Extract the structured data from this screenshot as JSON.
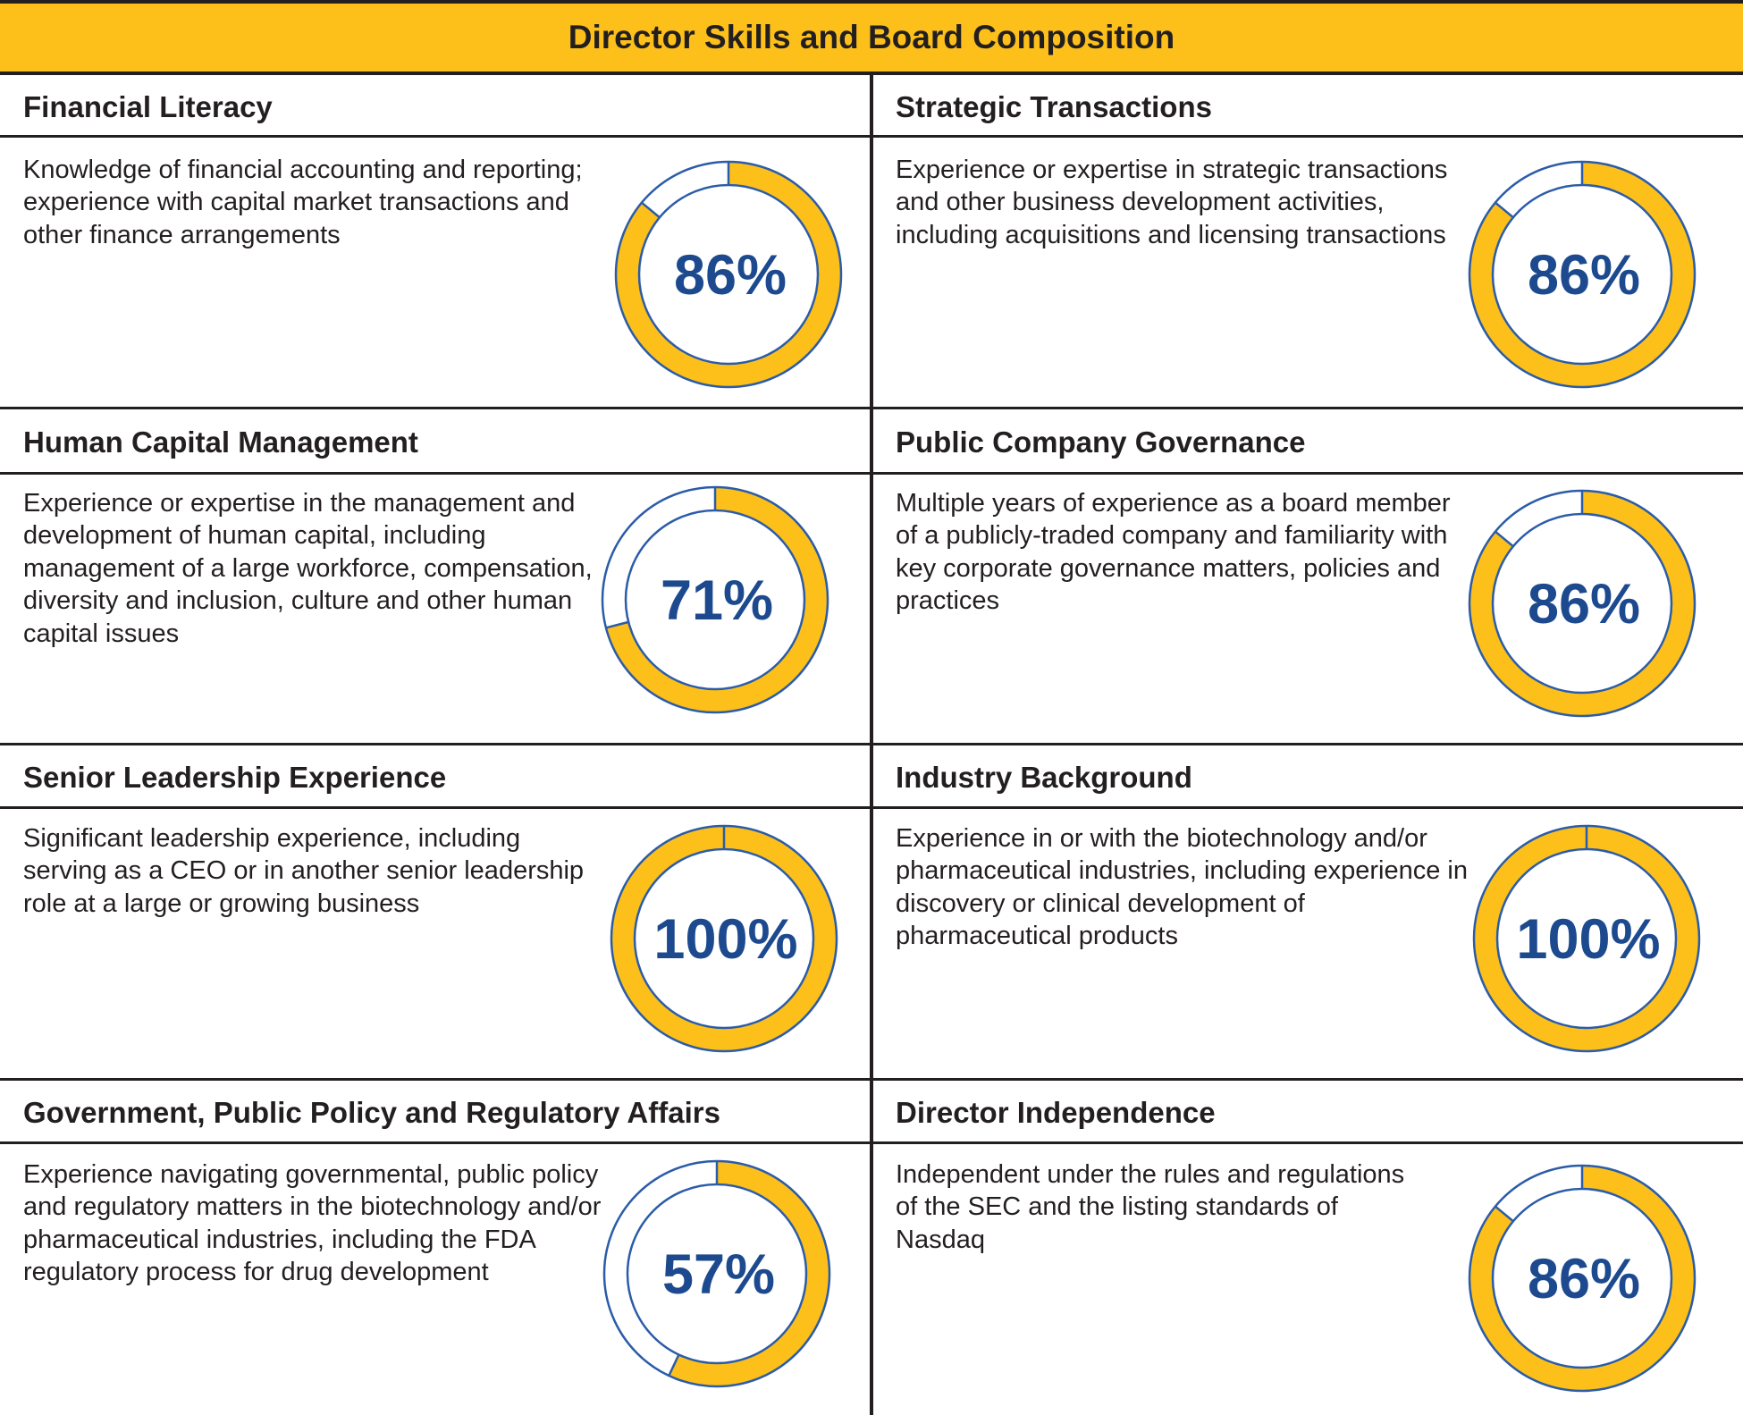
{
  "title": "Director Skills and Board Composition",
  "colors": {
    "accent": "#fdc01a",
    "ring_outline": "#2b5ca8",
    "text_blue": "#1d4a8f",
    "lines": "#231f20"
  },
  "chart_data": {
    "type": "pie",
    "title": "Director Skills and Board Composition",
    "panels": [
      {
        "title": "Financial Literacy",
        "description": "Knowledge of financial accounting and reporting; experience with capital market transactions and other finance arrangements",
        "value": 86,
        "label": "86%"
      },
      {
        "title": "Strategic Transactions",
        "description": "Experience or expertise in strategic transactions and other business development activities, including acquisitions and licensing transactions",
        "value": 86,
        "label": "86%"
      },
      {
        "title": "Human Capital Management",
        "description": "Experience or expertise in the management and development of human capital, including management of a large workforce, compensation, diversity and inclusion, culture and other human capital issues",
        "value": 71,
        "label": "71%"
      },
      {
        "title": "Public Company Governance",
        "description": "Multiple years of experience as a board member of a publicly-traded company and familiarity with key corporate governance matters, policies and practices",
        "value": 86,
        "label": "86%"
      },
      {
        "title": "Senior Leadership Experience",
        "description": "Significant leadership experience, including serving as a CEO or in another senior leadership role at a large or growing business",
        "value": 100,
        "label": "100%"
      },
      {
        "title": "Industry Background",
        "description": "Experience in or with the biotechnology and/or pharmaceutical industries, including experience in discovery or clinical development of pharmaceutical products",
        "value": 100,
        "label": "100%"
      },
      {
        "title": "Government, Public Policy and Regulatory Affairs",
        "description": "Experience navigating governmental, public policy and regulatory matters in the biotechnology and/or pharmaceutical industries, including the FDA regulatory process for drug development",
        "value": 57,
        "label": "57%"
      },
      {
        "title": "Director Independence",
        "description": "Independent under the rules and regulations of the SEC and the listing standards of Nasdaq",
        "value": 86,
        "label": "86%"
      }
    ]
  }
}
